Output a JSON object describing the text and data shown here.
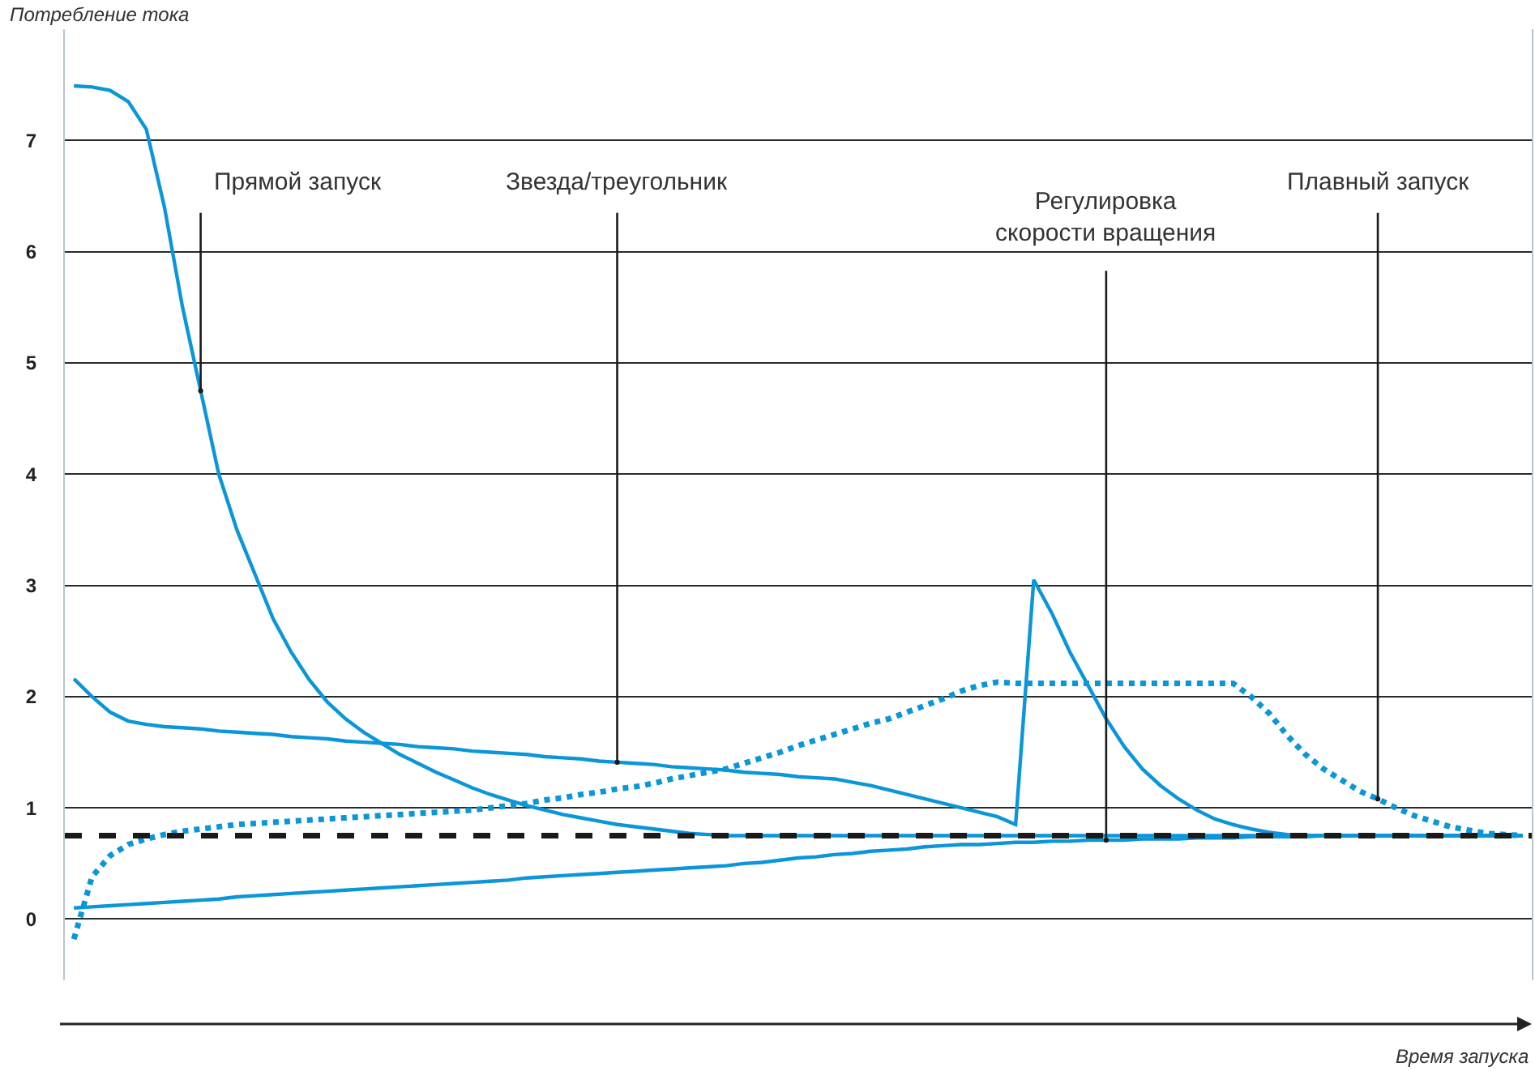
{
  "chart_data": {
    "type": "line",
    "ylabel": "Потребление тока",
    "xlabel": "Время запуска",
    "categories": [
      null,
      null,
      null,
      null,
      null,
      null,
      null,
      null,
      null,
      null,
      null,
      null,
      null,
      null,
      null,
      null,
      null,
      null,
      null,
      null,
      null,
      null,
      null,
      null,
      null,
      null,
      null,
      null,
      null,
      null,
      null,
      null,
      null,
      null,
      null,
      null,
      null,
      null,
      null,
      null,
      null,
      null,
      null,
      null,
      null,
      null,
      null,
      null,
      null,
      null,
      null,
      null,
      null,
      null,
      null,
      null,
      null,
      null,
      null,
      null,
      null,
      null,
      null,
      null,
      null,
      null,
      null,
      null,
      null,
      null,
      null,
      null,
      null,
      null,
      null,
      null,
      null,
      null,
      null,
      null,
      null
    ],
    "series": [
      {
        "color": "#0a96d8",
        "values": [
          7.49,
          7.48,
          7.45,
          7.35,
          7.1,
          6.4,
          5.5,
          4.75,
          4.0,
          3.5,
          3.1,
          2.7,
          2.4,
          2.15,
          1.95,
          1.8,
          1.68,
          1.58,
          1.48,
          1.4,
          1.32,
          1.25,
          1.18,
          1.12,
          1.07,
          1.02,
          0.98,
          0.94,
          0.91,
          0.88,
          0.85,
          0.83,
          0.81,
          0.79,
          0.77,
          0.76,
          0.75,
          0.75,
          0.75,
          0.75,
          0.75,
          0.75,
          0.75,
          0.75,
          0.75,
          0.75,
          0.75,
          0.75,
          0.75,
          0.75,
          0.75,
          0.75,
          0.75,
          0.75,
          0.75,
          0.75,
          0.75,
          0.75,
          0.75,
          0.75,
          0.75,
          0.75,
          0.75,
          0.75,
          0.75,
          0.75,
          0.75,
          0.75,
          0.75,
          0.75,
          0.75,
          0.75,
          0.75,
          0.75,
          0.75,
          0.75,
          0.75,
          0.75,
          0.75,
          0.75,
          0.75
        ]
      },
      {
        "color": "#0a96d8",
        "values": [
          2.16,
          2.0,
          1.86,
          1.78,
          1.75,
          1.73,
          1.72,
          1.71,
          1.69,
          1.68,
          1.67,
          1.66,
          1.64,
          1.63,
          1.62,
          1.6,
          1.59,
          1.58,
          1.57,
          1.55,
          1.54,
          1.53,
          1.51,
          1.5,
          1.49,
          1.48,
          1.46,
          1.45,
          1.44,
          1.42,
          1.41,
          1.4,
          1.39,
          1.37,
          1.36,
          1.35,
          1.34,
          1.32,
          1.31,
          1.3,
          1.28,
          1.27,
          1.26,
          1.23,
          1.2,
          1.16,
          1.12,
          1.08,
          1.04,
          1.0,
          0.96,
          0.92,
          0.85,
          3.05,
          2.75,
          2.4,
          2.1,
          1.8,
          1.55,
          1.35,
          1.2,
          1.08,
          0.98,
          0.9,
          0.85,
          0.81,
          0.78,
          0.76,
          0.75,
          0.75,
          0.75,
          0.75,
          0.75,
          0.75,
          0.75,
          0.75,
          0.75,
          0.75,
          0.75,
          0.75,
          0.75
        ]
      },
      {
        "color": "#0a96d8",
        "values": [
          0.1,
          0.11,
          0.12,
          0.13,
          0.14,
          0.15,
          0.16,
          0.17,
          0.18,
          0.2,
          0.21,
          0.22,
          0.23,
          0.24,
          0.25,
          0.26,
          0.27,
          0.28,
          0.29,
          0.3,
          0.31,
          0.32,
          0.33,
          0.34,
          0.35,
          0.37,
          0.38,
          0.39,
          0.4,
          0.41,
          0.42,
          0.43,
          0.44,
          0.45,
          0.46,
          0.47,
          0.48,
          0.5,
          0.51,
          0.53,
          0.55,
          0.56,
          0.58,
          0.59,
          0.61,
          0.62,
          0.63,
          0.65,
          0.66,
          0.67,
          0.67,
          0.68,
          0.69,
          0.69,
          0.7,
          0.7,
          0.71,
          0.71,
          0.71,
          0.72,
          0.72,
          0.72,
          0.73,
          0.73,
          0.73,
          0.74,
          0.74,
          0.74,
          0.74,
          0.75,
          0.75,
          0.75,
          0.75,
          0.75,
          0.75,
          0.75,
          0.75,
          0.75,
          0.75,
          0.75,
          0.75
        ]
      },
      {
        "color": "#0a96d8",
        "line_style": "dotted",
        "values": [
          -0.18,
          0.38,
          0.57,
          0.67,
          0.72,
          0.76,
          0.79,
          0.81,
          0.83,
          0.85,
          0.86,
          0.87,
          0.88,
          0.89,
          0.9,
          0.91,
          0.92,
          0.93,
          0.94,
          0.95,
          0.96,
          0.97,
          0.98,
          1.0,
          1.02,
          1.04,
          1.07,
          1.09,
          1.12,
          1.14,
          1.17,
          1.19,
          1.22,
          1.26,
          1.29,
          1.32,
          1.35,
          1.4,
          1.45,
          1.5,
          1.56,
          1.61,
          1.66,
          1.71,
          1.76,
          1.8,
          1.86,
          1.92,
          1.98,
          2.05,
          2.1,
          2.13,
          2.12,
          2.12,
          2.12,
          2.12,
          2.12,
          2.12,
          2.12,
          2.12,
          2.12,
          2.12,
          2.12,
          2.12,
          2.12,
          2.0,
          1.85,
          1.65,
          1.48,
          1.35,
          1.25,
          1.15,
          1.08,
          1.0,
          0.93,
          0.88,
          0.83,
          0.8,
          0.77,
          0.76,
          0.75
        ]
      }
    ],
    "ylim": [
      -0.55,
      8.0
    ],
    "yticks": [
      0,
      1,
      2,
      3,
      4,
      5,
      6,
      7
    ],
    "grid": "y",
    "line_style": "solid",
    "ref_lines": [
      {
        "axis": "y",
        "value": 0.75,
        "color": "#1a1a1a",
        "line_style": "dashed"
      }
    ],
    "annotations": [
      "Прямой запуск",
      "Звезда/треугольник",
      "Регулировка\nскорости вращения",
      "Плавный запуск"
    ]
  }
}
